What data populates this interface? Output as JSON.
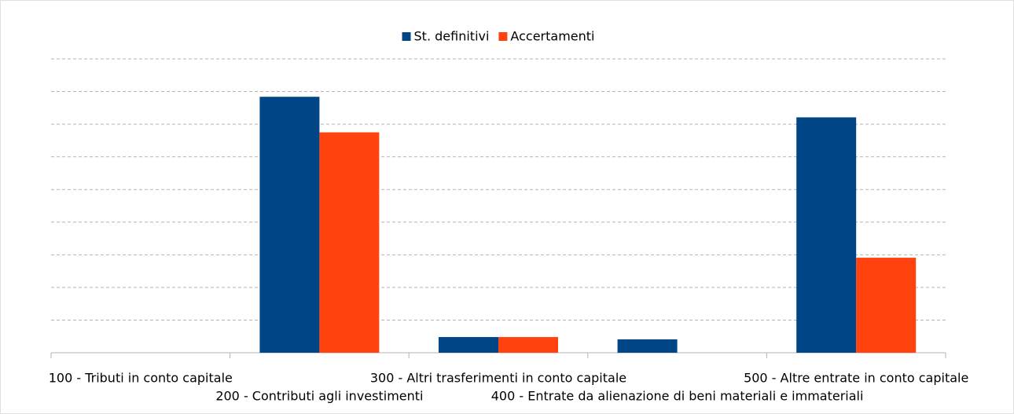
{
  "chart_data": {
    "type": "bar",
    "categories": [
      "100 - Tributi in conto capitale",
      "200 - Contributi agli investimenti",
      "300 - Altri trasferimenti in conto capitale",
      "400 - Entrate da alienazione di beni materiali e immateriali",
      "500 - Altre entrate in conto capitale"
    ],
    "series": [
      {
        "name": "St. definitivi",
        "color": "#004586",
        "values": [
          0,
          7.84,
          0.48,
          0.41,
          7.21
        ]
      },
      {
        "name": "Accertamenti",
        "color": "#ff420e",
        "values": [
          0,
          6.75,
          0.48,
          0,
          2.91
        ]
      }
    ],
    "ylim": [
      0,
      9
    ],
    "yticks": [
      0,
      1,
      2,
      3,
      4,
      5,
      6,
      7,
      8,
      9
    ],
    "grid": true,
    "legend": "top"
  }
}
